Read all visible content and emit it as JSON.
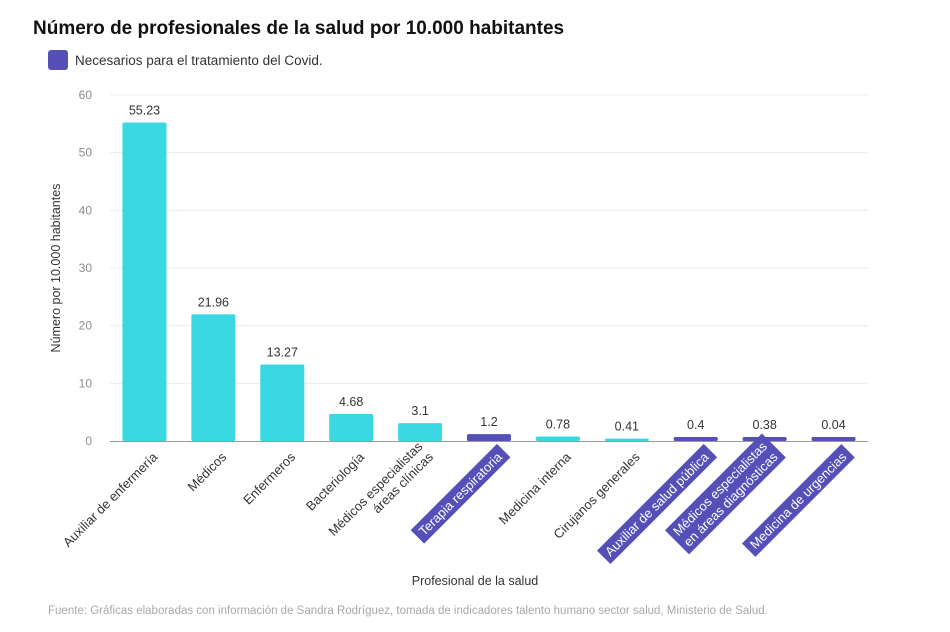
{
  "chart_data": {
    "type": "bar",
    "title": "Número de profesionales de la salud por 10.000 habitantes",
    "legend": [
      {
        "label": "Necesarios para el tratamiento del Covid.",
        "color": "#5450b8"
      }
    ],
    "xlabel": "Profesional de la salud",
    "ylabel": "Número por 10.000 habitantes",
    "ylim": [
      0,
      60
    ],
    "yticks": [
      0,
      10,
      20,
      30,
      40,
      50,
      60
    ],
    "grid": true,
    "colors": {
      "default": "#3ad8e2",
      "highlight": "#5450b8"
    },
    "categories": [
      "Auxiliar de enfermería",
      "Médicos",
      "Enfermeros",
      "Bacteriología",
      "Médicos especialistas\náreas clínicas",
      "Terapia respiratoria",
      "Medicina interna",
      "Cirujanos generales",
      "Auxiliar de salud pública",
      "Médicos especialistas\nen áreas diagnósticas",
      "Medicina de urgencias"
    ],
    "values": [
      55.23,
      21.96,
      13.27,
      4.68,
      3.1,
      1.2,
      0.78,
      0.41,
      0.4,
      0.38,
      0.04
    ],
    "value_labels": [
      "55.23",
      "21.96",
      "13.27",
      "4.68",
      "3.1",
      "1.2",
      "0.78",
      "0.41",
      "0.4",
      "0.38",
      "0.04"
    ],
    "highlighted": [
      false,
      false,
      false,
      false,
      false,
      true,
      false,
      false,
      true,
      true,
      true
    ]
  },
  "footer": {
    "source": "Fuente:  Gráficas elaboradas con información de Sandra Rodríguez, tomada de indicadores talento humano sector salud, Ministerio de Salud."
  }
}
